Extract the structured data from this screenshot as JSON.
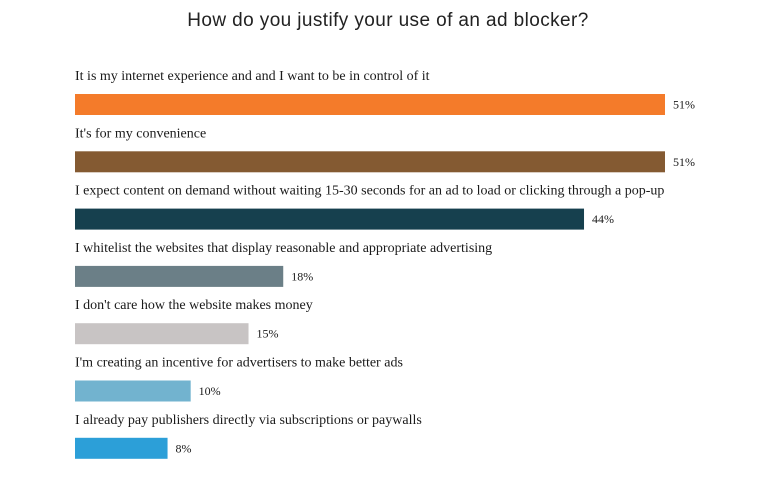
{
  "chart_data": {
    "type": "bar",
    "orientation": "horizontal",
    "title": "How do you justify your use of an ad blocker?",
    "categories": [
      "It is my internet experience and and I want to be in control of it",
      "It's for my convenience",
      "I expect content on demand without waiting 15-30 seconds for an ad to load or clicking through a pop-up",
      "I whitelist the websites that display reasonable and appropriate advertising",
      "I don't care how the website makes money",
      "I'm creating an incentive for advertisers to make better ads",
      "I already pay publishers directly via subscriptions or paywalls"
    ],
    "values": [
      51,
      51,
      44,
      18,
      15,
      10,
      8
    ],
    "value_labels": [
      "51%",
      "51%",
      "44%",
      "18%",
      "15%",
      "10%",
      "8%"
    ],
    "colors": [
      "#f47b2a",
      "#845a32",
      "#16404e",
      "#6b7f87",
      "#c8c4c4",
      "#72b3cf",
      "#2c9fd8"
    ],
    "xlim": [
      0,
      51
    ],
    "grid": false,
    "legend": "none"
  }
}
